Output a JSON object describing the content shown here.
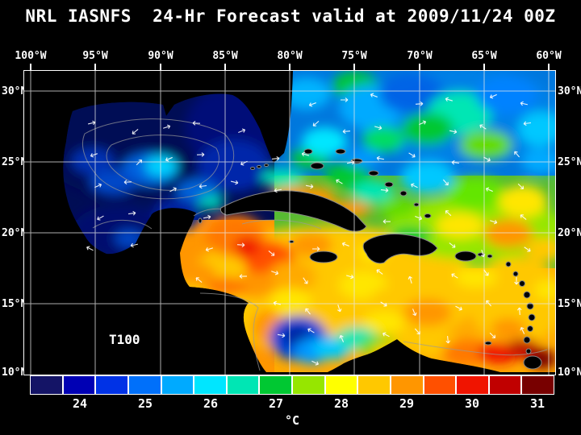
{
  "title": "NRL IASNFS  24-Hr Forecast valid at 2009/11/24 00Z",
  "axes": {
    "lon": [
      "100°W",
      "95°W",
      "90°W",
      "85°W",
      "80°W",
      "75°W",
      "70°W",
      "65°W",
      "60°W"
    ],
    "lat_left": [
      "30°N",
      "25°N",
      "20°N",
      "15°N",
      "10°N"
    ],
    "lat_right": [
      "30°N",
      "25°N",
      "20°N",
      "15°N",
      "10°N"
    ]
  },
  "map": {
    "depth_label": "T100"
  },
  "colorbar": {
    "unit": "°C",
    "tick_labels": [
      "24",
      "25",
      "26",
      "27",
      "28",
      "29",
      "30",
      "31"
    ],
    "segment_colors": [
      "#141466",
      "#0000b4",
      "#0032e6",
      "#0070fa",
      "#00aaff",
      "#00e6ff",
      "#00e6b4",
      "#00c832",
      "#96e600",
      "#ffff00",
      "#ffc800",
      "#ff9600",
      "#ff5000",
      "#f01400",
      "#c00000",
      "#780000"
    ]
  },
  "chart_data": {
    "type": "heatmap",
    "title": "NRL IASNFS 24-Hr Forecast valid at 2009/11/24 00Z",
    "variable_label": "T100",
    "unit": "°C",
    "colorbar_ticks": [
      24,
      25,
      26,
      27,
      28,
      29,
      30,
      31
    ],
    "colorbar_range": [
      23.5,
      31.5
    ],
    "lon_ticks_degW": [
      100,
      95,
      90,
      85,
      80,
      75,
      70,
      65,
      60
    ],
    "lat_ticks_degN": [
      30,
      25,
      20,
      15,
      10
    ],
    "legend_position": "bottom"
  }
}
